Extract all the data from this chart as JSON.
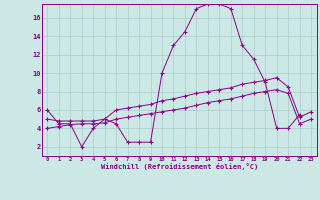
{
  "xlabel": "Windchill (Refroidissement éolien,°C)",
  "background_color": "#cce8e4",
  "grid_color": "#aacccc",
  "line_color": "#880088",
  "x_ticks": [
    0,
    1,
    2,
    3,
    4,
    5,
    6,
    7,
    8,
    9,
    10,
    11,
    12,
    13,
    14,
    15,
    16,
    17,
    18,
    19,
    20,
    21,
    22,
    23
  ],
  "y_ticks": [
    2,
    4,
    6,
    8,
    10,
    12,
    14,
    16
  ],
  "xlim": [
    -0.5,
    23.5
  ],
  "ylim": [
    1.0,
    17.5
  ],
  "series1_y": [
    6.0,
    4.5,
    4.5,
    2.0,
    4.0,
    5.0,
    4.5,
    2.5,
    2.5,
    2.5,
    10.0,
    13.0,
    14.5,
    17.0,
    17.5,
    17.5,
    17.0,
    13.0,
    11.5,
    9.0,
    4.0,
    4.0,
    5.5,
    null
  ],
  "series2_y": [
    5.0,
    4.8,
    4.8,
    4.8,
    4.8,
    5.0,
    6.0,
    6.2,
    6.4,
    6.6,
    7.0,
    7.2,
    7.5,
    7.8,
    8.0,
    8.2,
    8.4,
    8.8,
    9.0,
    9.2,
    9.5,
    8.5,
    5.2,
    5.8
  ],
  "series3_y": [
    4.0,
    4.2,
    4.4,
    4.5,
    4.5,
    4.6,
    5.0,
    5.2,
    5.4,
    5.6,
    5.8,
    6.0,
    6.2,
    6.5,
    6.8,
    7.0,
    7.2,
    7.5,
    7.8,
    8.0,
    8.2,
    7.8,
    4.5,
    5.0
  ]
}
